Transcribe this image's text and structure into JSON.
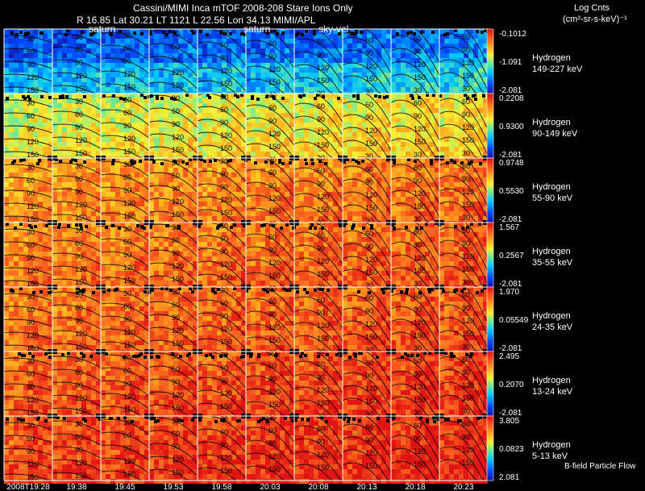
{
  "header": {
    "title": "Cassini/MIMI Inca mTOF  2008-208   Stare   Ions Only",
    "subtitle": "R         16.85 Lat 30.21 LT 1121 L        22.56 Lon         34.13  MIMI/APL",
    "units_line1": "Log Cnts",
    "units_line2": "(cm²-sr-s-keV)⁻¹"
  },
  "chart_data": {
    "type": "heatmap",
    "title": "Cassini/MIMI Inca mTOF  2008-208   Stare   Ions Only",
    "ephemeris": {
      "R": 16.85,
      "Lat": 30.21,
      "LT": 1121,
      "L": 22.56,
      "Lon": 34.13
    },
    "time_labels": [
      "2008T19:28",
      "19:38",
      "19:45",
      "19:53",
      "19:58",
      "20:03",
      "20:08",
      "20:13",
      "20:18",
      "20:23"
    ],
    "overlay_labels": [
      "saturn",
      "saturn",
      "sky-vel"
    ],
    "contour_labels": [
      "30",
      "60",
      "90",
      "120",
      "150"
    ],
    "footer_label": "B-field Particle Flow",
    "rows": [
      {
        "species": "Hydrogen",
        "energy": "149-227 keV",
        "scale_max": "-0.1012",
        "scale_mid": "-1.091",
        "scale_min": "-2.081",
        "base_level": 0.22
      },
      {
        "species": "Hydrogen",
        "energy": "90-149 keV",
        "scale_max": "0.2208",
        "scale_mid": "0.9300",
        "scale_min": "-2.081",
        "base_level": 0.52
      },
      {
        "species": "Hydrogen",
        "energy": "55-90 keV",
        "scale_max": "0.9748",
        "scale_mid": "0.5530",
        "scale_min": "-2.081",
        "base_level": 0.7
      },
      {
        "species": "Hydrogen",
        "energy": "35-55 keV",
        "scale_max": "1.567",
        "scale_mid": "0.2567",
        "scale_min": "-2.081",
        "base_level": 0.74
      },
      {
        "species": "Hydrogen",
        "energy": "24-35 keV",
        "scale_max": "1.970",
        "scale_mid": "0.05549",
        "scale_min": "-2.081",
        "base_level": 0.76
      },
      {
        "species": "Hydrogen",
        "energy": "13-24 keV",
        "scale_max": "2.495",
        "scale_mid": "0.2070",
        "scale_min": "-2.081",
        "base_level": 0.8
      },
      {
        "species": "Hydrogen",
        "energy": "5-13 keV",
        "scale_max": "3.805",
        "scale_mid": "0.0823",
        "scale_min": "2.081",
        "base_level": 0.84
      }
    ]
  }
}
